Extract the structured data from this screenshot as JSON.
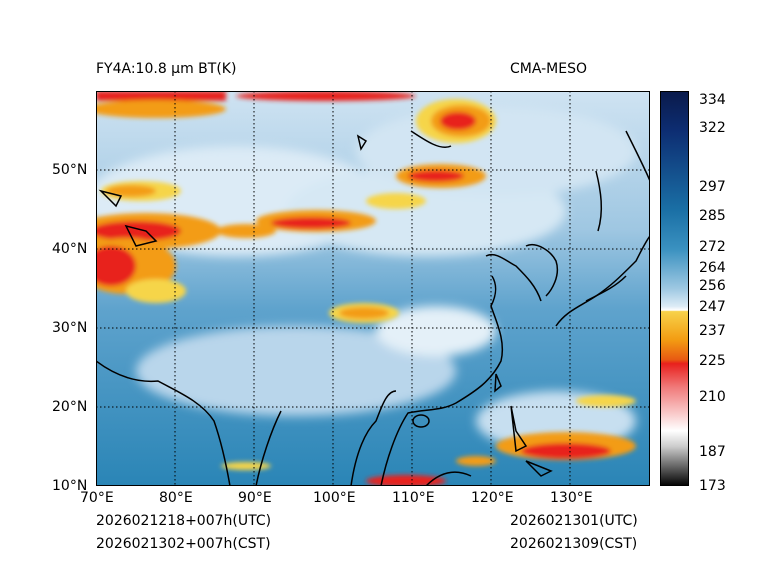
{
  "header": {
    "title_left": "FY4A:10.8 µm BT(K)",
    "title_right": "CMA-MESO"
  },
  "map": {
    "lat_labels": [
      "50°N",
      "40°N",
      "30°N",
      "20°N",
      "10°N"
    ],
    "lon_labels": [
      "70°E",
      "80°E",
      "90°E",
      "100°E",
      "110°E",
      "120°E",
      "130°E"
    ]
  },
  "colorbar": {
    "tick_labels": [
      "334",
      "322",
      "297",
      "285",
      "272",
      "264",
      "256",
      "247",
      "237",
      "225",
      "210",
      "187",
      "173"
    ]
  },
  "footer": {
    "left_utc": "2026021218+007h(UTC)",
    "left_cst": "2026021302+007h(CST)",
    "right_utc": "2026021301(UTC)",
    "right_cst": "2026021309(CST)"
  },
  "colors": {
    "cold_cloud_red": "#e8201c",
    "orange": "#f39c12",
    "yellow": "#f6d54a",
    "ocean_blue": "#2a85b6",
    "light_blue": "#c7dff0",
    "white": "#ffffff"
  }
}
